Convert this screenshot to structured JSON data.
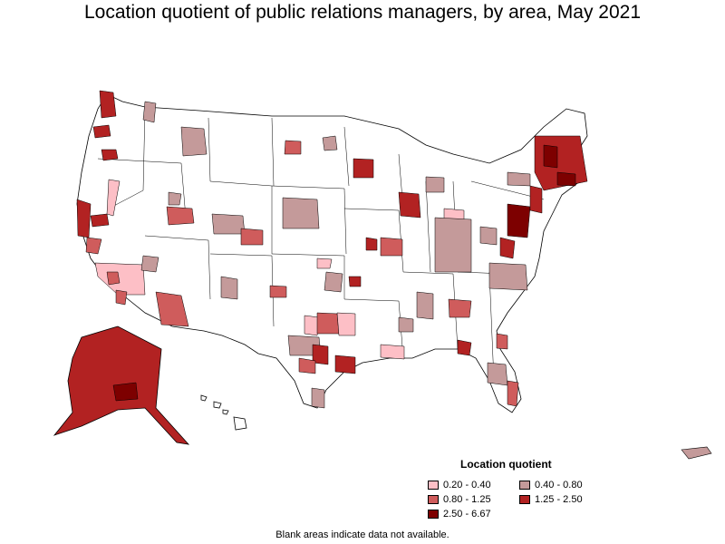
{
  "title": "Location quotient of public relations managers, by area, May 2021",
  "legend": {
    "title": "Location quotient",
    "items": [
      {
        "label": "0.20 - 0.40",
        "color": "#fdbfc6"
      },
      {
        "label": "0.40 - 0.80",
        "color": "#c49a9a"
      },
      {
        "label": "0.80 - 1.25",
        "color": "#cf5c5c"
      },
      {
        "label": "1.25 - 2.50",
        "color": "#b22222"
      },
      {
        "label": "2.50 - 6.67",
        "color": "#7d0000"
      }
    ]
  },
  "footnote": "Blank areas indicate data not available.",
  "colors": {
    "blank": "#ffffff",
    "border": "#000000"
  }
}
